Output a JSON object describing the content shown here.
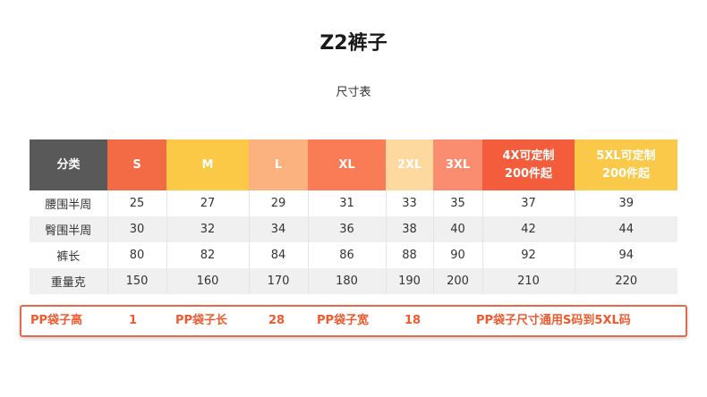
{
  "title": "Z2裤子",
  "subtitle": "尺寸表",
  "colors": {
    "header_category": "#595959",
    "S": "#f36b45",
    "M": "#fbc946",
    "L": "#fbb27f",
    "XL": "#fa7c56",
    "2XL": "#fdd9a0",
    "3XL": "#fa8d6f",
    "4XL": "#f45d3b",
    "5XL": "#fac94a",
    "note": "#ef5a2e"
  },
  "table": {
    "headers": [
      {
        "lines": [
          "分类"
        ],
        "color": "#595959"
      },
      {
        "lines": [
          "S"
        ],
        "color": "#f36b45"
      },
      {
        "lines": [
          "M"
        ],
        "color": "#fbc946"
      },
      {
        "lines": [
          "L"
        ],
        "color": "#fbb27f"
      },
      {
        "lines": [
          "XL"
        ],
        "color": "#fa7c56"
      },
      {
        "lines": [
          "2XL"
        ],
        "color": "#fdd9a0"
      },
      {
        "lines": [
          "3XL"
        ],
        "color": "#fa8d6f"
      },
      {
        "lines": [
          "4X可定制",
          "200件起"
        ],
        "color": "#f45d3b"
      },
      {
        "lines": [
          "5XL可定制",
          "200件起"
        ],
        "color": "#fac94a"
      }
    ],
    "rows": [
      {
        "label": "腰围半周",
        "values": [
          "25",
          "27",
          "29",
          "31",
          "33",
          "35",
          "37",
          "39"
        ]
      },
      {
        "label": "臀围半周",
        "values": [
          "30",
          "32",
          "34",
          "36",
          "38",
          "40",
          "42",
          "44"
        ]
      },
      {
        "label": "裤长",
        "values": [
          "80",
          "82",
          "84",
          "86",
          "88",
          "90",
          "92",
          "94"
        ]
      },
      {
        "label": "重量克",
        "values": [
          "150",
          "160",
          "170",
          "180",
          "190",
          "200",
          "210",
          "220"
        ]
      }
    ]
  },
  "note": {
    "pp_height_label": "PP袋子高",
    "pp_height_value": "1",
    "pp_length_label": "PP袋子长",
    "pp_length_value": "28",
    "pp_width_label": "PP袋子宽",
    "pp_width_value": "18",
    "pp_general": "PP袋子尺寸通用S码到5XL码"
  }
}
